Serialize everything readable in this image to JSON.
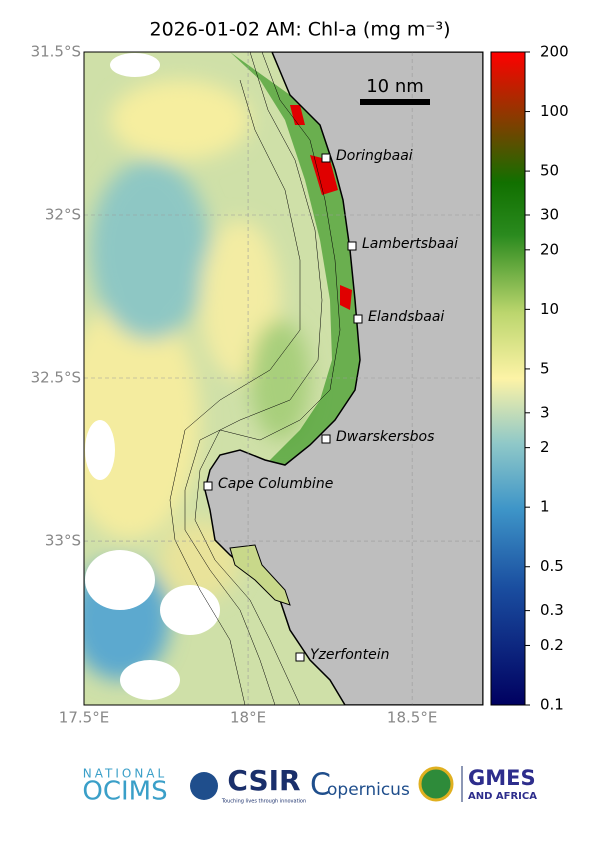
{
  "map": {
    "title": "2026-01-02 AM: Chl-a (mg m⁻³)",
    "latlim": [
      31.5,
      33.503
    ],
    "lonlim": [
      17.5,
      18.716
    ],
    "lat_ticks": [
      {
        "value": 31.5,
        "label": "31.5°S"
      },
      {
        "value": 32,
        "label": "32°S"
      },
      {
        "value": 32.5,
        "label": "32.5°S"
      },
      {
        "value": 33,
        "label": "33°S"
      }
    ],
    "lon_ticks": [
      {
        "value": 17.5,
        "label": "17.5°E"
      },
      {
        "value": 18,
        "label": "18°E"
      },
      {
        "value": 18.5,
        "label": "18.5°E"
      }
    ],
    "grid": true,
    "scale_bar": "10 nm",
    "places": [
      "Doringbaai",
      "Lambertsbaai",
      "Elandsbaai",
      "Dwarskersbos",
      "Cape Columbine",
      "Yzerfontein"
    ]
  },
  "colorbar": {
    "scale": "log",
    "lim": [
      0.1,
      200
    ],
    "ticks": [
      200,
      100,
      50,
      30,
      20,
      10,
      5,
      3,
      2,
      1,
      0.5,
      0.3,
      0.2,
      0.1
    ]
  },
  "logos": {
    "ocims_top": "NATIONAL",
    "ocims": "OCIMS",
    "csir": "CSIR",
    "csir_tagline": "Touching lives through innovation",
    "copernicus": "opernicus",
    "gmes": "GMES",
    "gmes_sub": "AND AFRICA"
  }
}
